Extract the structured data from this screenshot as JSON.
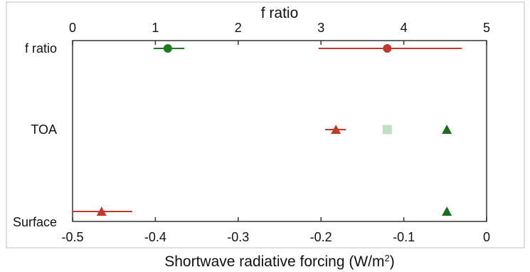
{
  "chart_data": {
    "type": "scatter",
    "title": "",
    "top_axis": {
      "label": "f ratio",
      "range": [
        0,
        5
      ],
      "ticks": [
        0,
        1,
        2,
        3,
        4,
        5
      ],
      "tick_labels": [
        "0",
        "1",
        "2",
        "3",
        "4",
        "5"
      ]
    },
    "bottom_axis": {
      "label_main": "Shortwave radiative forcing (W/m",
      "label_sup": "2",
      "label_end": ")",
      "range": [
        -0.5,
        0
      ],
      "ticks": [
        -0.5,
        -0.4,
        -0.3,
        -0.2,
        -0.1,
        0
      ],
      "tick_labels": [
        "-0.5",
        "-0.4",
        "-0.3",
        "-0.2",
        "-0.1",
        "0"
      ]
    },
    "categories": [
      "f ratio",
      "TOA",
      "Surface"
    ],
    "grid": false,
    "legend": "none",
    "points": [
      {
        "category": "f ratio",
        "axis": "top",
        "value": 1.15,
        "err_low": 0.98,
        "err_high": 1.35,
        "marker": "circle",
        "color": "#1f7a1f",
        "opacity": 1
      },
      {
        "category": "f ratio",
        "axis": "top",
        "value": 3.8,
        "err_low": 2.97,
        "err_high": 4.7,
        "marker": "circle",
        "color": "#c0392b",
        "opacity": 1
      },
      {
        "category": "TOA",
        "axis": "bottom",
        "value": -0.182,
        "err_low": -0.195,
        "err_high": -0.17,
        "marker": "triangle",
        "color": "#c0392b",
        "opacity": 1
      },
      {
        "category": "TOA",
        "axis": "bottom",
        "value": -0.12,
        "marker": "square",
        "color": "#8fc48f",
        "opacity": 0.55
      },
      {
        "category": "TOA",
        "axis": "bottom",
        "value": -0.048,
        "marker": "triangle",
        "color": "#1a6b1a",
        "opacity": 1
      },
      {
        "category": "Surface",
        "axis": "bottom",
        "value": -0.465,
        "err_low": -0.5,
        "err_high": -0.428,
        "marker": "triangle",
        "color": "#c0392b",
        "opacity": 1
      },
      {
        "category": "Surface",
        "axis": "bottom",
        "value": -0.048,
        "marker": "triangle",
        "color": "#1a6b1a",
        "opacity": 1
      }
    ],
    "colors": {
      "frame": "#333333",
      "outer_frame": "#bfbfbf"
    }
  }
}
